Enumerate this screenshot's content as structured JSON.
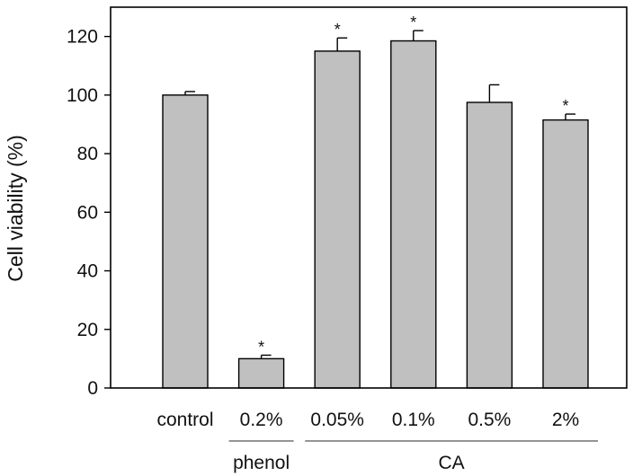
{
  "chart_data": {
    "type": "bar",
    "ylabel": "Cell viability (%)",
    "xlabel": "",
    "ylim": [
      0,
      130
    ],
    "yticks": [
      0,
      20,
      40,
      60,
      80,
      100,
      120
    ],
    "categories": [
      "control",
      "0.2%",
      "0.05%",
      "0.1%",
      "0.5%",
      "2%"
    ],
    "values": [
      100,
      10,
      115,
      118.5,
      97.5,
      91.5
    ],
    "errors": [
      1.2,
      1.2,
      4.5,
      3.5,
      6,
      2
    ],
    "significance": [
      "",
      "*",
      "*",
      "*",
      "",
      "*"
    ],
    "groups": [
      {
        "label": "phenol",
        "from": 1,
        "to": 1
      },
      {
        "label": "CA",
        "from": 2,
        "to": 5
      }
    ],
    "colors": {
      "bar_fill": "#c0c0c0",
      "bar_stroke": "#000000"
    },
    "grid": false,
    "legend": "none"
  }
}
